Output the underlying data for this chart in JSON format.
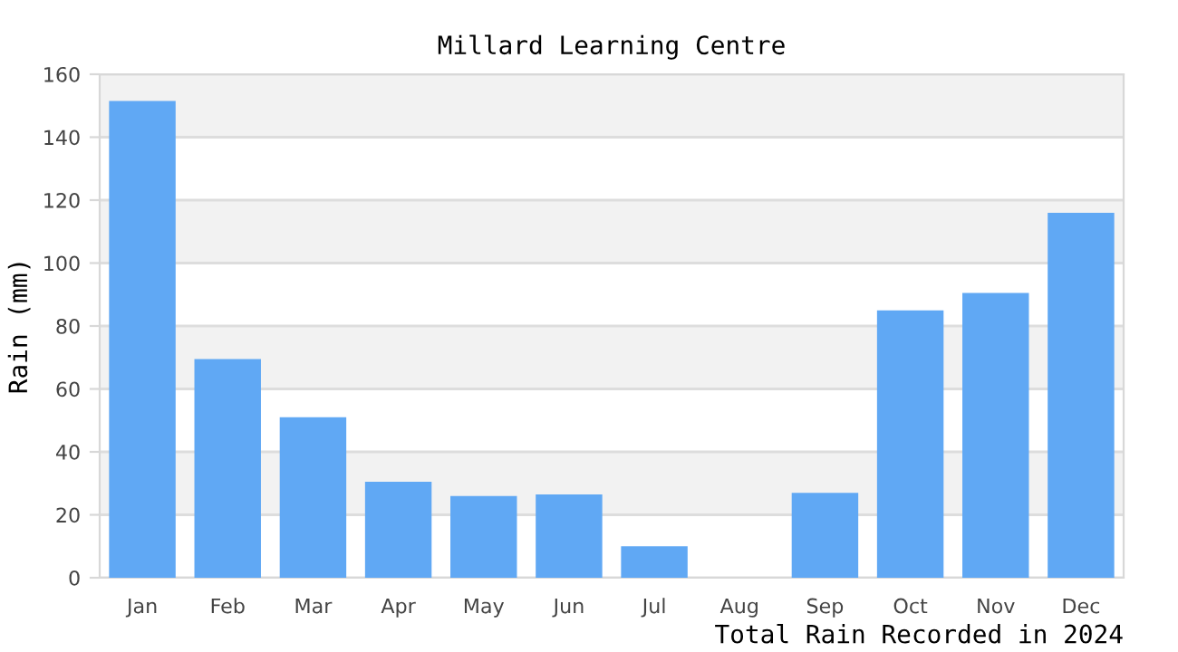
{
  "chart_data": {
    "type": "bar",
    "title": "Millard Learning Centre",
    "ylabel": "Rain (mm)",
    "xlabel": "Total Rain Recorded in 2024",
    "categories": [
      "Jan",
      "Feb",
      "Mar",
      "Apr",
      "May",
      "Jun",
      "Jul",
      "Aug",
      "Sep",
      "Oct",
      "Nov",
      "Dec"
    ],
    "values": [
      151.5,
      69.5,
      51,
      30.5,
      26,
      26.5,
      10,
      0,
      27,
      85,
      90.5,
      116
    ],
    "color": "#60a8f4",
    "ylim": [
      0,
      160
    ],
    "yticks": [
      0,
      20,
      40,
      60,
      80,
      100,
      120,
      140,
      160
    ],
    "grid": "y",
    "bands": [
      {
        "axis": "y",
        "from": 20,
        "to": 40,
        "label": null,
        "color": "#f2f2f2"
      },
      {
        "axis": "y",
        "from": 60,
        "to": 80,
        "label": null,
        "color": "#f2f2f2"
      },
      {
        "axis": "y",
        "from": 100,
        "to": 120,
        "label": null,
        "color": "#f2f2f2"
      },
      {
        "axis": "y",
        "from": 140,
        "to": 160,
        "label": null,
        "color": "#f2f2f2"
      }
    ]
  }
}
